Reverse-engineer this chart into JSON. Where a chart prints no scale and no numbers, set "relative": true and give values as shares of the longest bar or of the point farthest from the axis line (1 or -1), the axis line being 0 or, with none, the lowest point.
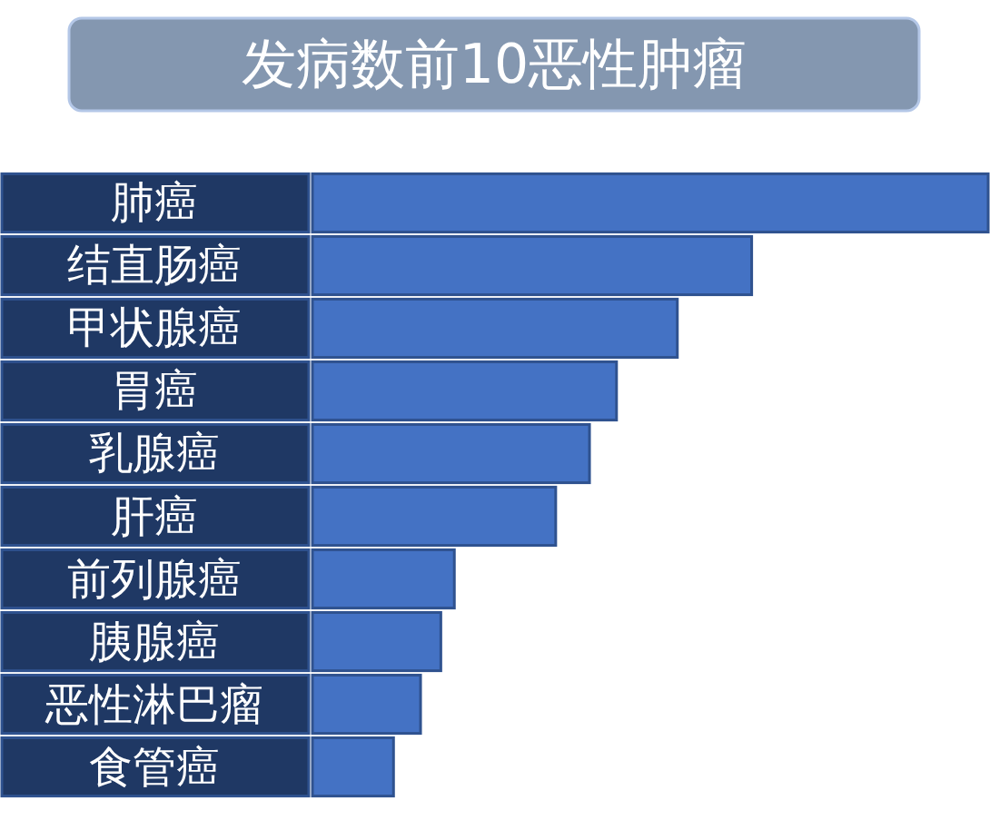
{
  "chart_data": {
    "type": "bar",
    "orientation": "horizontal",
    "relative": true,
    "title": "发病数前10恶性肿瘤",
    "categories": [
      "肺癌",
      "结直肠癌",
      "甲状腺癌",
      "胃癌",
      "乳腺癌",
      "肝癌",
      "前列腺癌",
      "胰腺癌",
      "恶性淋巴瘤",
      "食管癌"
    ],
    "values": [
      1,
      0.65,
      0.54,
      0.45,
      0.41,
      0.36,
      0.21,
      0.19,
      0.16,
      0.12
    ],
    "color": "#4472c4"
  }
}
